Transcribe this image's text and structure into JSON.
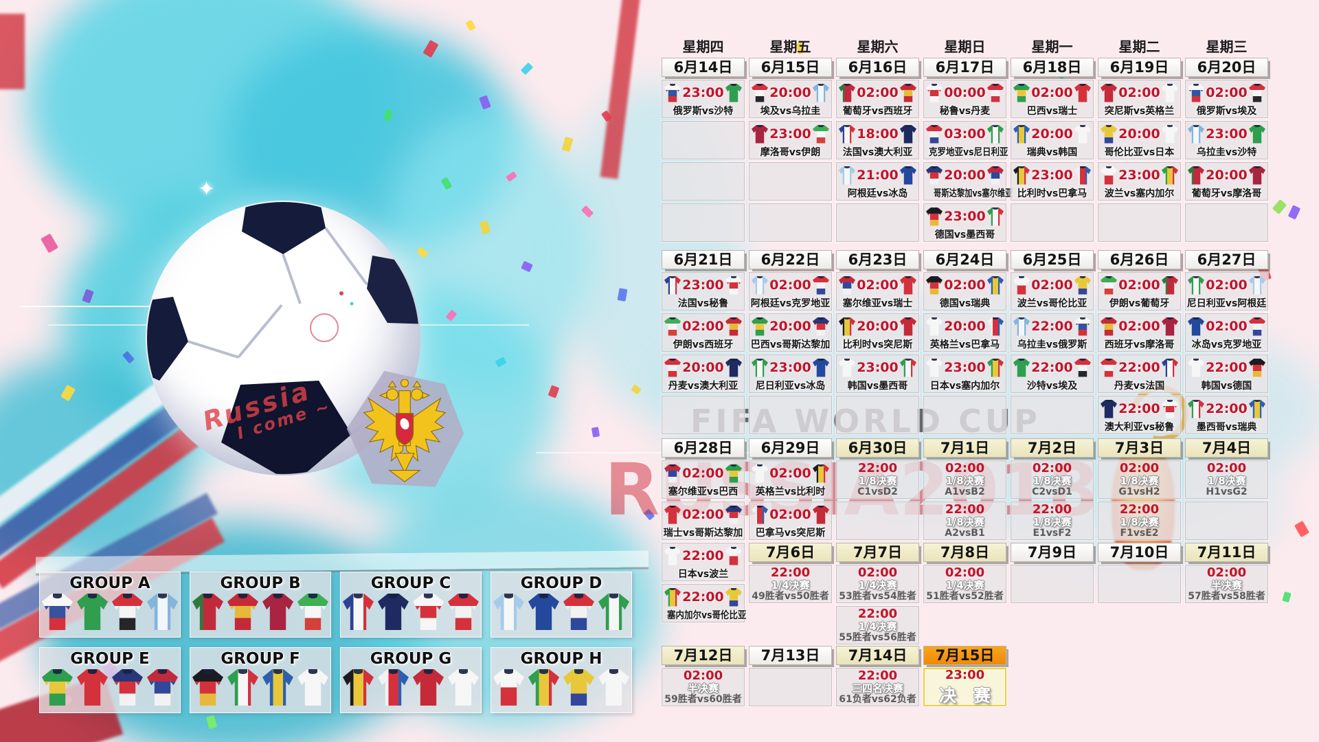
{
  "watermarks": {
    "fifa": "FIFA WORLD CUP",
    "russia": "RUSSIA2018"
  },
  "ball": {
    "scribble_line1": "Russia",
    "scribble_line2": "I come ~"
  },
  "vs_separator": "vs",
  "colors": {
    "accent_red": "#c2142a",
    "header_white": "#ffffff",
    "header_cream": "#f2eecb",
    "header_orange": "#f79110",
    "final_border": "#e3d44c"
  },
  "weekdays": [
    "星期四",
    "星期五",
    "星期六",
    "星期日",
    "星期一",
    "星期二",
    "星期三"
  ],
  "teams": {
    "俄罗斯": {
      "c": [
        "#f7f7f7",
        "#35539e",
        "#d4313c"
      ],
      "d": "h"
    },
    "沙特": {
      "c": [
        "#2f9e4f"
      ],
      "d": "h"
    },
    "埃及": {
      "c": [
        "#d4313c",
        "#f5f5f5",
        "#26262a"
      ],
      "d": "h"
    },
    "乌拉圭": {
      "c": [
        "#85b4dc",
        "#f2f7fb",
        "#85b4dc"
      ],
      "d": "v"
    },
    "葡萄牙": {
      "c": [
        "#2e7a3e",
        "#c12a3b",
        "#c12a3b"
      ],
      "d": "v"
    },
    "西班牙": {
      "c": [
        "#c52a38",
        "#e7b93a",
        "#c52a38"
      ],
      "d": "h"
    },
    "摩洛哥": {
      "c": [
        "#a82440"
      ],
      "d": "h"
    },
    "伊朗": {
      "c": [
        "#3fae55",
        "#f6f6f6",
        "#d4403a"
      ],
      "d": "h"
    },
    "法国": {
      "c": [
        "#2c4193",
        "#f6f6f6",
        "#d4313c"
      ],
      "d": "v"
    },
    "澳大利亚": {
      "c": [
        "#1e2a60"
      ],
      "d": "h"
    },
    "秘鲁": {
      "c": [
        "#f6f6f6",
        "#d4313c",
        "#f6f6f6"
      ],
      "d": "h"
    },
    "丹麦": {
      "c": [
        "#d4313c",
        "#f2f2f2",
        "#d4313c"
      ],
      "d": "h"
    },
    "阿根廷": {
      "c": [
        "#a6cbe9",
        "#f6f6f6",
        "#a6cbe9"
      ],
      "d": "v"
    },
    "冰岛": {
      "c": [
        "#24489c"
      ],
      "d": "h"
    },
    "克罗地亚": {
      "c": [
        "#d4313c",
        "#f2f2f2",
        "#31479b"
      ],
      "d": "h"
    },
    "尼日利亚": {
      "c": [
        "#2f9e4f",
        "#f6f6f6",
        "#2f9e4f"
      ],
      "d": "v"
    },
    "巴西": {
      "c": [
        "#2f9e4f",
        "#e7c83a",
        "#2f9e4f"
      ],
      "d": "h"
    },
    "瑞士": {
      "c": [
        "#d4313c"
      ],
      "d": "h"
    },
    "哥斯达黎加": {
      "c": [
        "#283779",
        "#d4313c",
        "#f2f2f2"
      ],
      "d": "h"
    },
    "塞尔维亚": {
      "c": [
        "#c12a3b",
        "#31479b",
        "#f2f2f2"
      ],
      "d": "h"
    },
    "德国": {
      "c": [
        "#1c1c20",
        "#d4313c",
        "#e7b93a"
      ],
      "d": "h"
    },
    "墨西哥": {
      "c": [
        "#2f9e4f",
        "#f6f6f6",
        "#d4313c"
      ],
      "d": "v"
    },
    "瑞典": {
      "c": [
        "#2d5fae",
        "#e7c83a",
        "#2d5fae"
      ],
      "d": "v"
    },
    "韩国": {
      "c": [
        "#f6f6f6"
      ],
      "d": "h"
    },
    "比利时": {
      "c": [
        "#1c1c20",
        "#e7c83a",
        "#d4313c"
      ],
      "d": "v"
    },
    "巴拿马": {
      "c": [
        "#f2f2f2",
        "#d4313c",
        "#2d5fae"
      ],
      "d": "v"
    },
    "突尼斯": {
      "c": [
        "#c52a38"
      ],
      "d": "h"
    },
    "英格兰": {
      "c": [
        "#f6f6f6"
      ],
      "d": "h"
    },
    "波兰": {
      "c": [
        "#f6f6f6",
        "#d4313c"
      ],
      "d": "h"
    },
    "塞内加尔": {
      "c": [
        "#2f9e4f",
        "#e7c83a",
        "#d4313c"
      ],
      "d": "v"
    },
    "哥伦比亚": {
      "c": [
        "#e7c83a",
        "#e7c83a",
        "#31479b"
      ],
      "d": "h"
    },
    "日本": {
      "c": [
        "#f6f6f6"
      ],
      "d": "h"
    }
  },
  "weeks": [
    {
      "cols": [
        {
          "slots": [
            {
              "t": "h",
              "d": "6月14日",
              "s": "w"
            },
            {
              "t": "m",
              "tm": "23:00",
              "h": "俄罗斯",
              "a": "沙特"
            },
            {
              "t": "e"
            },
            {
              "t": "e"
            },
            {
              "t": "e"
            }
          ]
        },
        {
          "slots": [
            {
              "t": "h",
              "d": "6月15日",
              "s": "w"
            },
            {
              "t": "m",
              "tm": "20:00",
              "h": "埃及",
              "a": "乌拉圭"
            },
            {
              "t": "m",
              "tm": "23:00",
              "h": "摩洛哥",
              "a": "伊朗"
            },
            {
              "t": "e"
            },
            {
              "t": "e"
            }
          ]
        },
        {
          "slots": [
            {
              "t": "h",
              "d": "6月16日",
              "s": "w"
            },
            {
              "t": "m",
              "tm": "02:00",
              "h": "葡萄牙",
              "a": "西班牙"
            },
            {
              "t": "m",
              "tm": "18:00",
              "h": "法国",
              "a": "澳大利亚"
            },
            {
              "t": "m",
              "tm": "21:00",
              "h": "阿根廷",
              "a": "冰岛"
            },
            {
              "t": "e"
            }
          ]
        },
        {
          "slots": [
            {
              "t": "h",
              "d": "6月17日",
              "s": "w"
            },
            {
              "t": "m",
              "tm": "00:00",
              "h": "秘鲁",
              "a": "丹麦"
            },
            {
              "t": "m",
              "tm": "03:00",
              "h": "克罗地亚",
              "a": "尼日利亚"
            },
            {
              "t": "m",
              "tm": "20:00",
              "h": "哥斯达黎加",
              "a": "塞尔维亚"
            },
            {
              "t": "m",
              "tm": "23:00",
              "h": "德国",
              "a": "墨西哥"
            }
          ]
        },
        {
          "slots": [
            {
              "t": "h",
              "d": "6月18日",
              "s": "w"
            },
            {
              "t": "m",
              "tm": "02:00",
              "h": "巴西",
              "a": "瑞士"
            },
            {
              "t": "m",
              "tm": "20:00",
              "h": "瑞典",
              "a": "韩国"
            },
            {
              "t": "m",
              "tm": "23:00",
              "h": "比利时",
              "a": "巴拿马"
            },
            {
              "t": "e"
            }
          ]
        },
        {
          "slots": [
            {
              "t": "h",
              "d": "6月19日",
              "s": "w"
            },
            {
              "t": "m",
              "tm": "02:00",
              "h": "突尼斯",
              "a": "英格兰"
            },
            {
              "t": "m",
              "tm": "20:00",
              "h": "哥伦比亚",
              "a": "日本"
            },
            {
              "t": "m",
              "tm": "23:00",
              "h": "波兰",
              "a": "塞内加尔"
            },
            {
              "t": "e"
            }
          ]
        },
        {
          "slots": [
            {
              "t": "h",
              "d": "6月20日",
              "s": "w"
            },
            {
              "t": "m",
              "tm": "02:00",
              "h": "俄罗斯",
              "a": "埃及"
            },
            {
              "t": "m",
              "tm": "23:00",
              "h": "乌拉圭",
              "a": "沙特"
            },
            {
              "t": "m",
              "tm": "20:00",
              "h": "葡萄牙",
              "a": "摩洛哥"
            },
            {
              "t": "e"
            }
          ]
        }
      ]
    },
    {
      "cols": [
        {
          "slots": [
            {
              "t": "h",
              "d": "6月21日",
              "s": "w"
            },
            {
              "t": "m",
              "tm": "23:00",
              "h": "法国",
              "a": "秘鲁"
            },
            {
              "t": "m",
              "tm": "02:00",
              "h": "伊朗",
              "a": "西班牙"
            },
            {
              "t": "m",
              "tm": "20:00",
              "h": "丹麦",
              "a": "澳大利亚"
            },
            {
              "t": "e"
            }
          ]
        },
        {
          "slots": [
            {
              "t": "h",
              "d": "6月22日",
              "s": "w"
            },
            {
              "t": "m",
              "tm": "02:00",
              "h": "阿根廷",
              "a": "克罗地亚"
            },
            {
              "t": "m",
              "tm": "20:00",
              "h": "巴西",
              "a": "哥斯达黎加"
            },
            {
              "t": "m",
              "tm": "23:00",
              "h": "尼日利亚",
              "a": "冰岛"
            },
            {
              "t": "e"
            }
          ]
        },
        {
          "slots": [
            {
              "t": "h",
              "d": "6月23日",
              "s": "w"
            },
            {
              "t": "m",
              "tm": "02:00",
              "h": "塞尔维亚",
              "a": "瑞士"
            },
            {
              "t": "m",
              "tm": "20:00",
              "h": "比利时",
              "a": "突尼斯"
            },
            {
              "t": "m",
              "tm": "23:00",
              "h": "韩国",
              "a": "墨西哥"
            },
            {
              "t": "e"
            }
          ]
        },
        {
          "slots": [
            {
              "t": "h",
              "d": "6月24日",
              "s": "w"
            },
            {
              "t": "m",
              "tm": "02:00",
              "h": "德国",
              "a": "瑞典"
            },
            {
              "t": "m",
              "tm": "20:00",
              "h": "英格兰",
              "a": "巴拿马"
            },
            {
              "t": "m",
              "tm": "23:00",
              "h": "日本",
              "a": "塞内加尔"
            },
            {
              "t": "e"
            }
          ]
        },
        {
          "slots": [
            {
              "t": "h",
              "d": "6月25日",
              "s": "w"
            },
            {
              "t": "m",
              "tm": "02:00",
              "h": "波兰",
              "a": "哥伦比亚"
            },
            {
              "t": "m",
              "tm": "22:00",
              "h": "乌拉圭",
              "a": "俄罗斯"
            },
            {
              "t": "m",
              "tm": "22:00",
              "h": "沙特",
              "a": "埃及"
            },
            {
              "t": "e"
            }
          ]
        },
        {
          "slots": [
            {
              "t": "h",
              "d": "6月26日",
              "s": "w"
            },
            {
              "t": "m",
              "tm": "02:00",
              "h": "伊朗",
              "a": "葡萄牙"
            },
            {
              "t": "m",
              "tm": "02:00",
              "h": "西班牙",
              "a": "摩洛哥"
            },
            {
              "t": "m",
              "tm": "22:00",
              "h": "丹麦",
              "a": "法国"
            },
            {
              "t": "m",
              "tm": "22:00",
              "h": "澳大利亚",
              "a": "秘鲁"
            }
          ]
        },
        {
          "slots": [
            {
              "t": "h",
              "d": "6月27日",
              "s": "w"
            },
            {
              "t": "m",
              "tm": "02:00",
              "h": "尼日利亚",
              "a": "阿根廷"
            },
            {
              "t": "m",
              "tm": "02:00",
              "h": "冰岛",
              "a": "克罗地亚"
            },
            {
              "t": "m",
              "tm": "22:00",
              "h": "韩国",
              "a": "德国"
            },
            {
              "t": "m",
              "tm": "22:00",
              "h": "墨西哥",
              "a": "瑞典"
            }
          ]
        }
      ]
    },
    {
      "cols": [
        {
          "slots": [
            {
              "t": "h",
              "d": "6月28日",
              "s": "w"
            },
            {
              "t": "m",
              "tm": "02:00",
              "h": "塞尔维亚",
              "a": "巴西"
            },
            {
              "t": "m",
              "tm": "02:00",
              "h": "瑞士",
              "a": "哥斯达黎加"
            },
            {
              "t": "m",
              "tm": "22:00",
              "h": "日本",
              "a": "波兰"
            },
            {
              "t": "m",
              "tm": "22:00",
              "h": "塞内加尔",
              "a": "哥伦比亚"
            }
          ]
        },
        {
          "slots": [
            {
              "t": "h",
              "d": "6月29日",
              "s": "w"
            },
            {
              "t": "m",
              "tm": "02:00",
              "h": "英格兰",
              "a": "比利时"
            },
            {
              "t": "m",
              "tm": "02:00",
              "h": "巴拿马",
              "a": "突尼斯"
            },
            {
              "t": "h",
              "d": "7月6日",
              "s": "c"
            },
            {
              "t": "k",
              "tm": "22:00",
              "st": "1/4决赛",
              "ts": "49胜者vs50胜者"
            }
          ]
        },
        {
          "slots": [
            {
              "t": "h",
              "d": "6月30日",
              "s": "c"
            },
            {
              "t": "k",
              "tm": "22:00",
              "st": "1/8决赛",
              "ts": "C1vsD2"
            },
            {
              "t": "e"
            },
            {
              "t": "h",
              "d": "7月7日",
              "s": "c"
            },
            {
              "t": "k",
              "tm": "02:00",
              "st": "1/4决赛",
              "ts": "53胜者vs54胜者"
            },
            {
              "t": "k",
              "tm": "22:00",
              "st": "1/4决赛",
              "ts": "55胜者vs56胜者"
            }
          ]
        },
        {
          "slots": [
            {
              "t": "h",
              "d": "7月1日",
              "s": "c"
            },
            {
              "t": "k",
              "tm": "02:00",
              "st": "1/8决赛",
              "ts": "A1vsB2"
            },
            {
              "t": "k",
              "tm": "22:00",
              "st": "1/8决赛",
              "ts": "A2vsB1"
            },
            {
              "t": "h",
              "d": "7月8日",
              "s": "c"
            },
            {
              "t": "k",
              "tm": "02:00",
              "st": "1/4决赛",
              "ts": "51胜者vs52胜者"
            }
          ]
        },
        {
          "slots": [
            {
              "t": "h",
              "d": "7月2日",
              "s": "c"
            },
            {
              "t": "k",
              "tm": "02:00",
              "st": "1/8决赛",
              "ts": "C2vsD1"
            },
            {
              "t": "k",
              "tm": "22:00",
              "st": "1/8决赛",
              "ts": "E1vsF2"
            },
            {
              "t": "h",
              "d": "7月9日",
              "s": "w"
            },
            {
              "t": "e"
            }
          ]
        },
        {
          "slots": [
            {
              "t": "h",
              "d": "7月3日",
              "s": "c"
            },
            {
              "t": "k",
              "tm": "02:00",
              "st": "1/8决赛",
              "ts": "G1vsH2"
            },
            {
              "t": "k",
              "tm": "22:00",
              "st": "1/8决赛",
              "ts": "F1vsE2"
            },
            {
              "t": "h",
              "d": "7月10日",
              "s": "w"
            },
            {
              "t": "e"
            }
          ]
        },
        {
          "slots": [
            {
              "t": "h",
              "d": "7月4日",
              "s": "c"
            },
            {
              "t": "k",
              "tm": "02:00",
              "st": "1/8决赛",
              "ts": "H1vsG2"
            },
            {
              "t": "e"
            },
            {
              "t": "h",
              "d": "7月11日",
              "s": "c"
            },
            {
              "t": "k",
              "tm": "02:00",
              "st": "半决赛",
              "ts": "57胜者vs58胜者"
            }
          ]
        }
      ]
    },
    {
      "cols": [
        {
          "slots": [
            {
              "t": "h",
              "d": "7月12日",
              "s": "c"
            },
            {
              "t": "k",
              "tm": "02:00",
              "st": "半决赛",
              "ts": "59胜者vs60胜者"
            }
          ]
        },
        {
          "slots": [
            {
              "t": "h",
              "d": "7月13日",
              "s": "w"
            },
            {
              "t": "e"
            }
          ]
        },
        {
          "slots": [
            {
              "t": "h",
              "d": "7月14日",
              "s": "c"
            },
            {
              "t": "k",
              "tm": "22:00",
              "st": "三四名决赛",
              "ts": "61负者vs62负者"
            }
          ]
        },
        {
          "slots": [
            {
              "t": "h",
              "d": "7月15日",
              "s": "o"
            },
            {
              "t": "f",
              "tm": "23:00",
              "lb": "决 赛"
            }
          ]
        }
      ]
    }
  ],
  "groups": [
    {
      "name": "GROUP A",
      "teams": [
        "俄罗斯",
        "沙特",
        "埃及",
        "乌拉圭"
      ]
    },
    {
      "name": "GROUP B",
      "teams": [
        "葡萄牙",
        "西班牙",
        "摩洛哥",
        "伊朗"
      ]
    },
    {
      "name": "GROUP C",
      "teams": [
        "法国",
        "澳大利亚",
        "秘鲁",
        "丹麦"
      ]
    },
    {
      "name": "GROUP D",
      "teams": [
        "阿根廷",
        "冰岛",
        "克罗地亚",
        "尼日利亚"
      ]
    },
    {
      "name": "GROUP E",
      "teams": [
        "巴西",
        "瑞士",
        "哥斯达黎加",
        "塞尔维亚"
      ]
    },
    {
      "name": "GROUP F",
      "teams": [
        "德国",
        "墨西哥",
        "瑞典",
        "韩国"
      ]
    },
    {
      "name": "GROUP G",
      "teams": [
        "比利时",
        "巴拿马",
        "突尼斯",
        "英格兰"
      ]
    },
    {
      "name": "GROUP H",
      "teams": [
        "波兰",
        "塞内加尔",
        "哥伦比亚",
        "日本"
      ]
    }
  ]
}
